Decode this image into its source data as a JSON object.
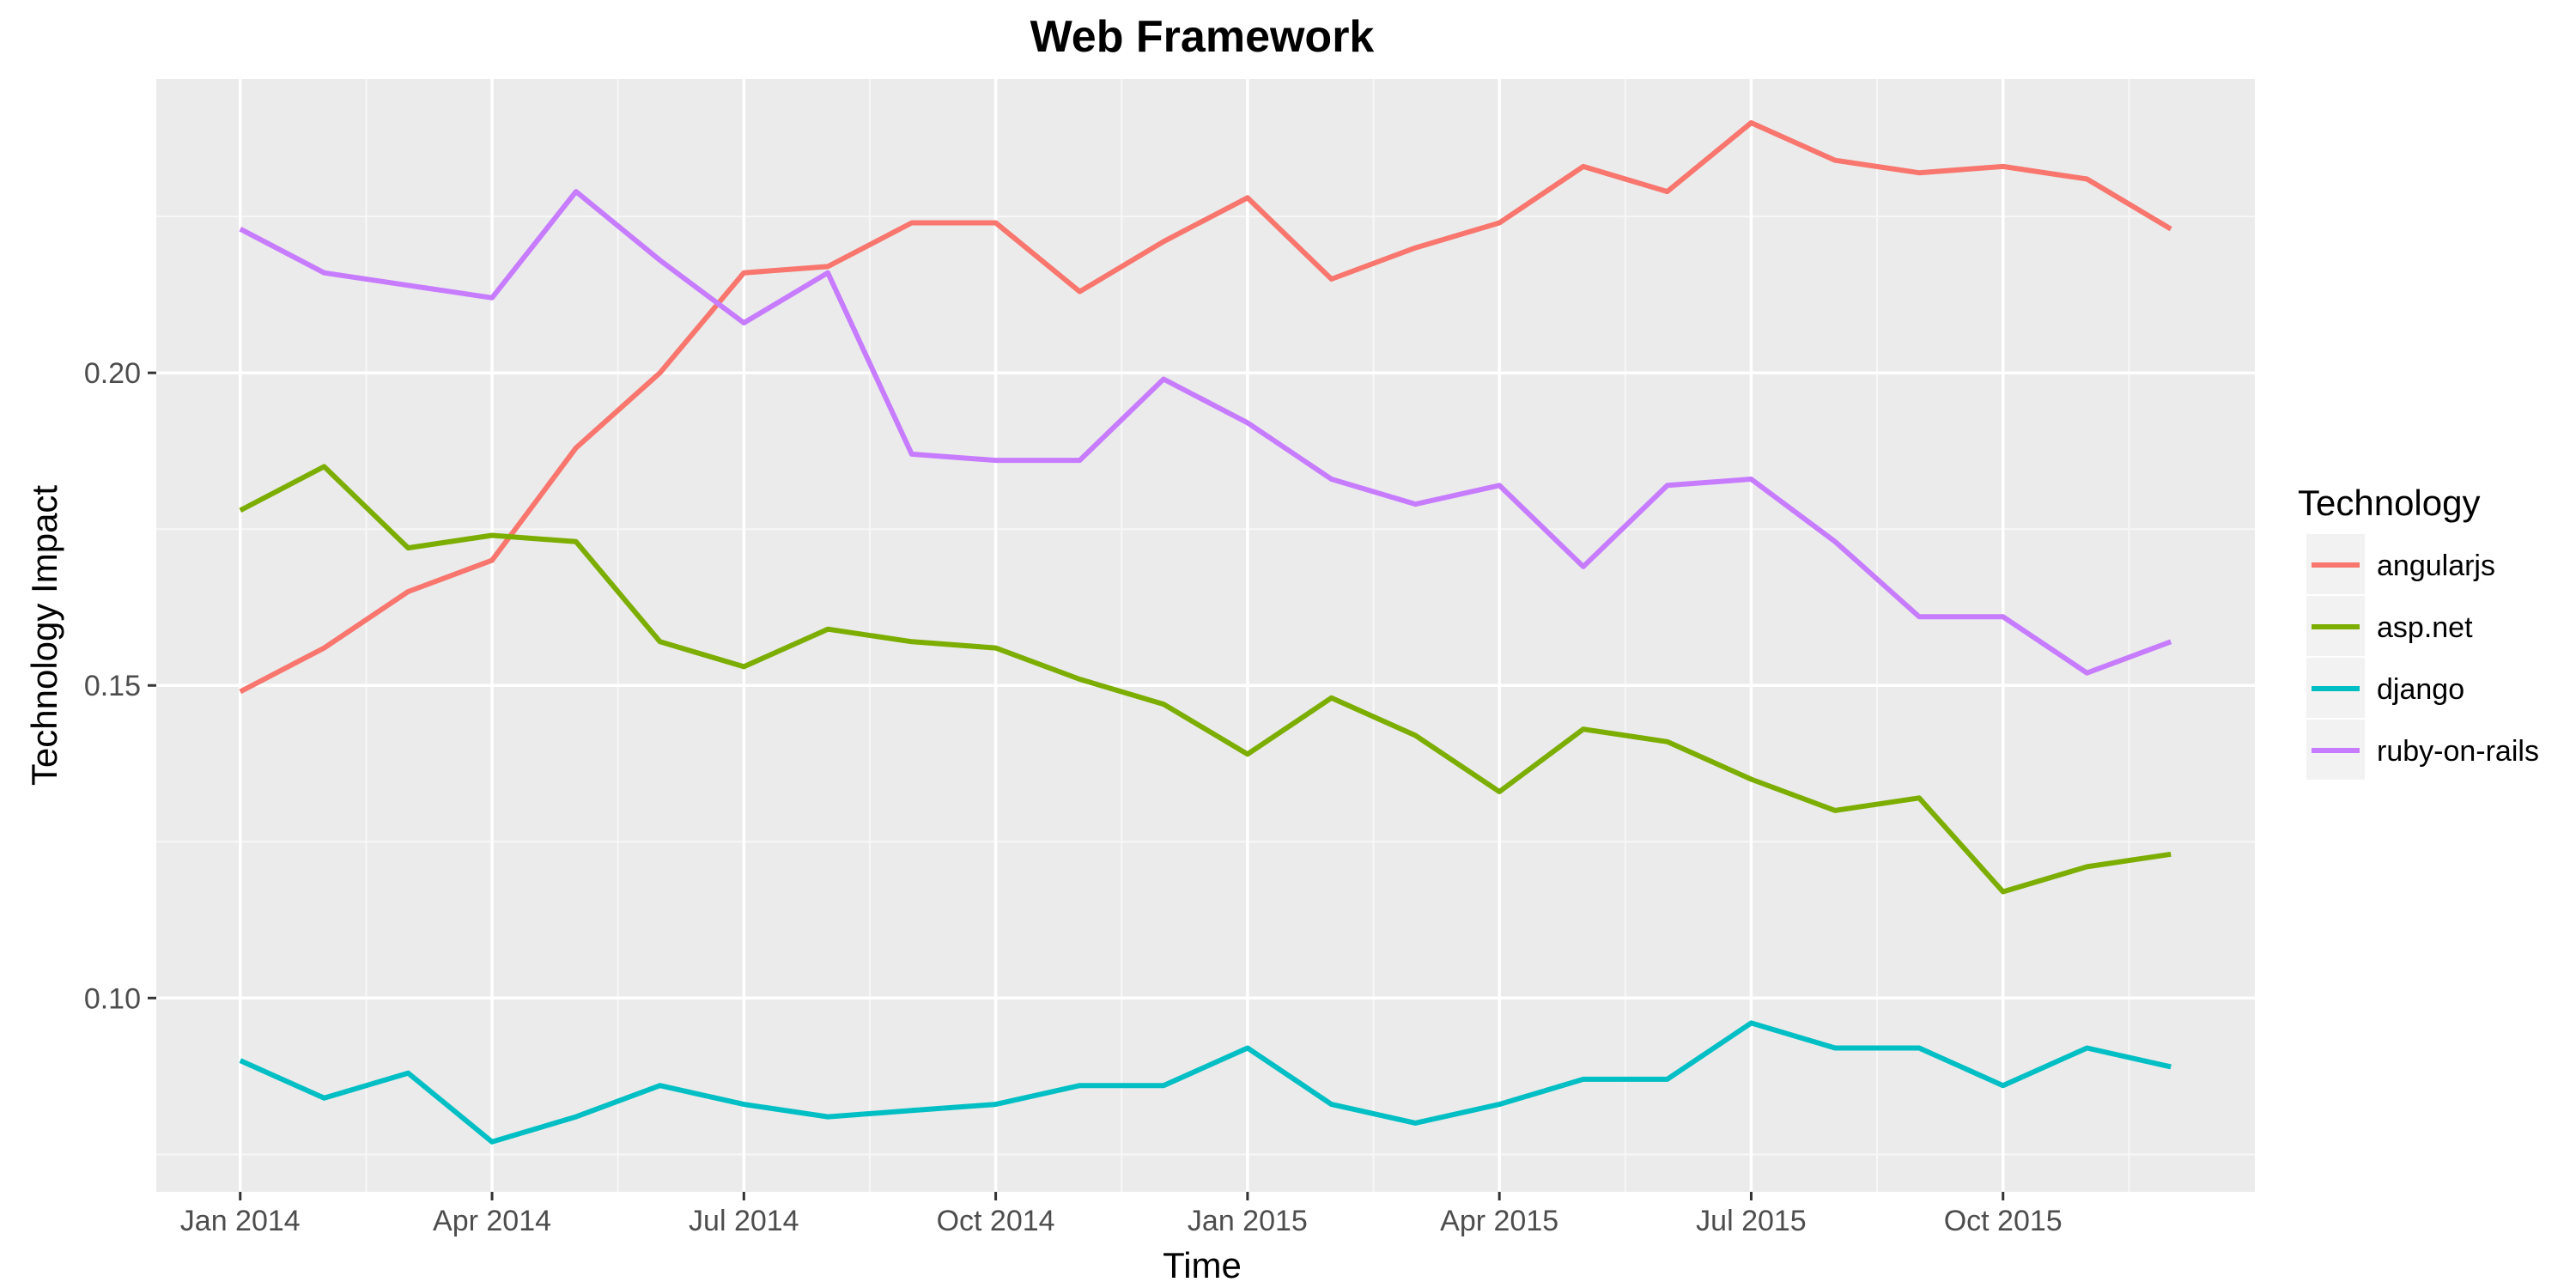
{
  "chart_data": {
    "type": "line",
    "title": "Web Framework",
    "xlabel": "Time",
    "ylabel": "Technology Impact",
    "x": [
      "2014-01",
      "2014-02",
      "2014-03",
      "2014-04",
      "2014-05",
      "2014-06",
      "2014-07",
      "2014-08",
      "2014-09",
      "2014-10",
      "2014-11",
      "2014-12",
      "2015-01",
      "2015-02",
      "2015-03",
      "2015-04",
      "2015-05",
      "2015-06",
      "2015-07",
      "2015-08",
      "2015-09",
      "2015-10",
      "2015-11",
      "2015-12"
    ],
    "x_ticks": [
      {
        "value": "2014-01",
        "label": "Jan 2014"
      },
      {
        "value": "2014-04",
        "label": "Apr 2014"
      },
      {
        "value": "2014-07",
        "label": "Jul 2014"
      },
      {
        "value": "2014-10",
        "label": "Oct 2014"
      },
      {
        "value": "2015-01",
        "label": "Jan 2015"
      },
      {
        "value": "2015-04",
        "label": "Apr 2015"
      },
      {
        "value": "2015-07",
        "label": "Jul 2015"
      },
      {
        "value": "2015-10",
        "label": "Oct 2015"
      }
    ],
    "y_ticks": [
      {
        "value": 0.1,
        "label": "0.10"
      },
      {
        "value": 0.15,
        "label": "0.15"
      },
      {
        "value": 0.2,
        "label": "0.20"
      }
    ],
    "xlim": [
      "2013-12",
      "2016-01"
    ],
    "ylim": [
      0.069,
      0.247
    ],
    "grid": true,
    "legend": {
      "title": "Technology",
      "position": "right"
    },
    "series": [
      {
        "name": "angularjs",
        "color": "#F8766D",
        "values": [
          0.149,
          0.156,
          0.165,
          0.17,
          0.188,
          0.2,
          0.216,
          0.217,
          0.224,
          0.224,
          0.213,
          0.221,
          0.228,
          0.215,
          0.22,
          0.224,
          0.233,
          0.229,
          0.24,
          0.234,
          0.232,
          0.233,
          0.231,
          0.223
        ]
      },
      {
        "name": "asp.net",
        "color": "#7CAE00",
        "values": [
          0.178,
          0.185,
          0.172,
          0.174,
          0.173,
          0.157,
          0.153,
          0.159,
          0.157,
          0.156,
          0.151,
          0.147,
          0.139,
          0.148,
          0.142,
          0.133,
          0.143,
          0.141,
          0.135,
          0.13,
          0.132,
          0.117,
          0.121,
          0.123
        ]
      },
      {
        "name": "django",
        "color": "#00BFC4",
        "values": [
          0.09,
          0.084,
          0.088,
          0.077,
          0.081,
          0.086,
          0.083,
          0.081,
          0.082,
          0.083,
          0.086,
          0.086,
          0.092,
          0.083,
          0.08,
          0.083,
          0.087,
          0.087,
          0.096,
          0.092,
          0.092,
          0.086,
          0.092,
          0.089
        ]
      },
      {
        "name": "ruby-on-rails",
        "color": "#C77CFF",
        "values": [
          0.223,
          0.216,
          0.214,
          0.212,
          0.229,
          0.218,
          0.208,
          0.216,
          0.187,
          0.186,
          0.186,
          0.199,
          0.192,
          0.183,
          0.179,
          0.182,
          0.169,
          0.182,
          0.183,
          0.173,
          0.161,
          0.161,
          0.152,
          0.157
        ]
      }
    ]
  }
}
